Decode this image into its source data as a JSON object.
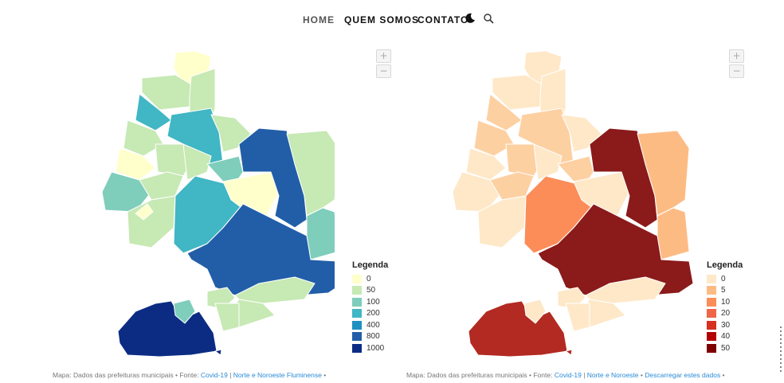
{
  "nav": {
    "items": [
      {
        "label": "HOME",
        "active": true
      },
      {
        "label": "QUEM SOMOS",
        "active": false
      },
      {
        "label": "CONTATO",
        "active": false
      }
    ],
    "icons": [
      "moon-icon",
      "search-icon"
    ]
  },
  "maps": [
    {
      "zoom_in": "+",
      "zoom_out": "−",
      "legend": {
        "title": "Legenda",
        "items": [
          {
            "label": "0",
            "color": "#ffffcc"
          },
          {
            "label": "50",
            "color": "#c7e9b4"
          },
          {
            "label": "100",
            "color": "#7fcdbb"
          },
          {
            "label": "200",
            "color": "#41b6c4"
          },
          {
            "label": "400",
            "color": "#1d91c0"
          },
          {
            "label": "800",
            "color": "#225ea8"
          },
          {
            "label": "1000",
            "color": "#0c2c84"
          }
        ]
      },
      "credits": {
        "prefix": "Mapa: Dados das prefeituras municipais • Fonte: ",
        "link1": "Covid-19",
        "sep": " | ",
        "link2": "Norte e Noroeste Fluminense",
        "suffix": " •"
      }
    },
    {
      "zoom_in": "+",
      "zoom_out": "−",
      "legend": {
        "title": "Legenda",
        "items": [
          {
            "label": "0",
            "color": "#fee8c8"
          },
          {
            "label": "5",
            "color": "#fdbb84"
          },
          {
            "label": "10",
            "color": "#fc8d59"
          },
          {
            "label": "20",
            "color": "#ef6548"
          },
          {
            "label": "30",
            "color": "#d7301f"
          },
          {
            "label": "40",
            "color": "#b30000"
          },
          {
            "label": "50",
            "color": "#7f0000"
          }
        ]
      },
      "credits": {
        "prefix": "Mapa: Dados das prefeituras municipais • Fonte: ",
        "link1": "Covid-19",
        "sep": " | ",
        "link2": "Norte e Noroeste",
        "mid": " • ",
        "link3": "Descarregar estes dados",
        "suffix": " •"
      }
    }
  ]
}
